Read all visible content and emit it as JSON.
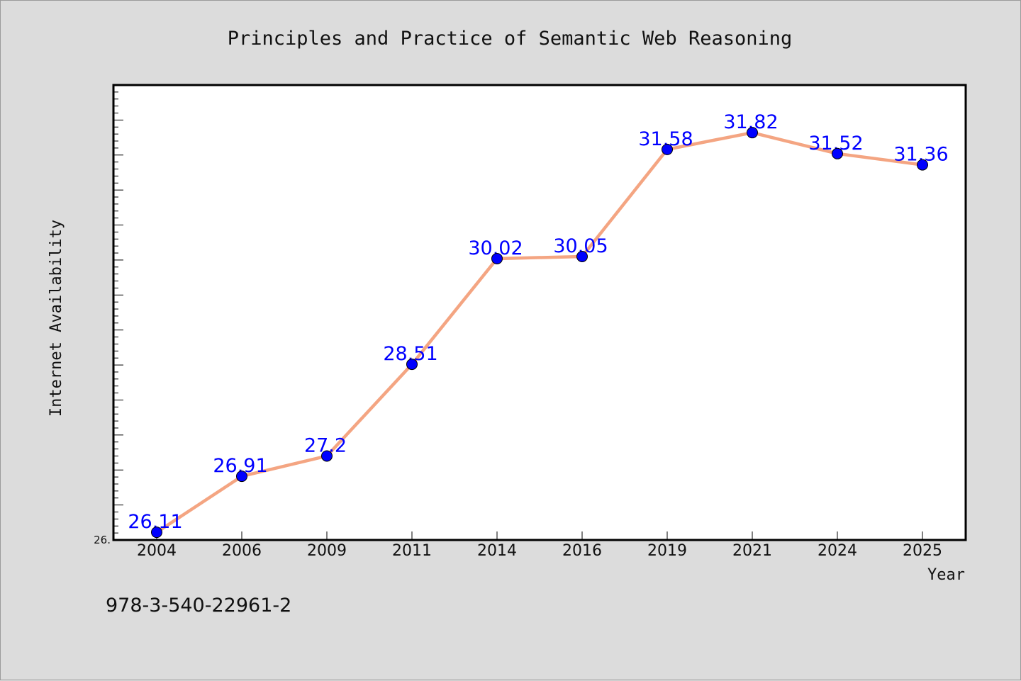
{
  "chart_data": {
    "type": "line",
    "title": "Principles and Practice of Semantic Web Reasoning",
    "xlabel": "Year",
    "ylabel": "Internet Availability",
    "categories": [
      "2004",
      "2006",
      "2009",
      "2011",
      "2014",
      "2016",
      "2019",
      "2021",
      "2024",
      "2025"
    ],
    "series": [
      {
        "values": [
          26.11,
          26.91,
          27.2,
          28.51,
          30.02,
          30.05,
          31.58,
          31.82,
          31.52,
          31.36
        ],
        "labels": [
          "26.11",
          "26.91",
          "27.2",
          "28.51",
          "30.02",
          "30.05",
          "31.58",
          "31.82",
          "31.52",
          "31.36"
        ]
      }
    ],
    "ylim": [
      26.0,
      32.5
    ],
    "yticks_labeled": [
      "26."
    ],
    "grid": false,
    "line_color": "#f4a582",
    "marker_color": "#0000ff",
    "label_color": "#0000ff",
    "background_color": "#dcdcdc",
    "plot_background_color": "#ffffff"
  },
  "footer": {
    "text": "978-3-540-22961-2"
  }
}
